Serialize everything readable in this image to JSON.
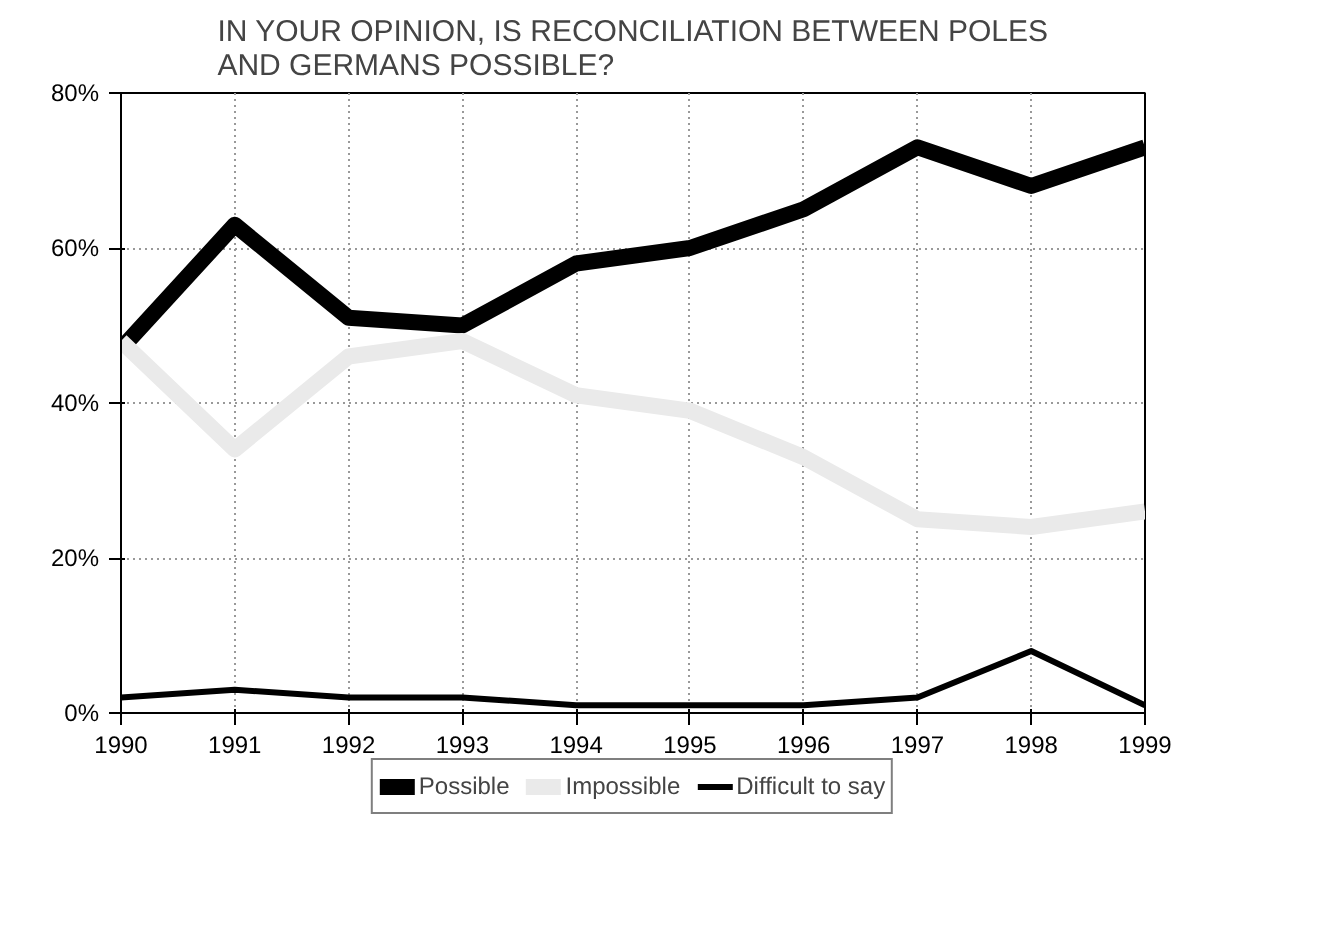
{
  "chart_data": {
    "type": "line",
    "title": "IN YOUR OPINION, IS RECONCILIATION BETWEEN POLES AND GERMANS POSSIBLE?",
    "x": [
      1990,
      1991,
      1992,
      1993,
      1994,
      1995,
      1996,
      1997,
      1998,
      1999
    ],
    "series": [
      {
        "name": "Possible",
        "color": "#000000",
        "values": [
          47,
          63,
          51,
          50,
          58,
          60,
          65,
          73,
          68,
          73
        ]
      },
      {
        "name": "Impossible",
        "color": "#eaeaea",
        "values": [
          48,
          34,
          46,
          48,
          41,
          39,
          33,
          25,
          24,
          26
        ]
      },
      {
        "name": "Difficult to say",
        "color": "#000000",
        "values": [
          2,
          3,
          2,
          2,
          1,
          1,
          1,
          2,
          8,
          1
        ]
      }
    ],
    "xlim": [
      1990,
      1999
    ],
    "xticks": [
      1990,
      1991,
      1992,
      1993,
      1994,
      1995,
      1996,
      1997,
      1998,
      1999
    ],
    "ylim": [
      0,
      80
    ],
    "yticks": [
      {
        "value": 0,
        "label": "0%"
      },
      {
        "value": 20,
        "label": "20%"
      },
      {
        "value": 40,
        "label": "40%"
      },
      {
        "value": 60,
        "label": "60%"
      },
      {
        "value": 80,
        "label": "80%"
      }
    ],
    "grid": true,
    "legend": "bottom",
    "marker": "none",
    "line_style": "solid"
  }
}
